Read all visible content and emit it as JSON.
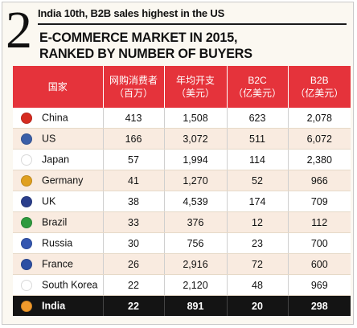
{
  "header": {
    "number": "2",
    "subtitle": "India 10th, B2B sales highest in the US",
    "title_line1": "E-COMMERCE MARKET IN 2015,",
    "title_line2": "RANKED BY NUMBER OF BUYERS"
  },
  "table": {
    "col_country": "国家",
    "col_buyers_1": "网购消费者",
    "col_buyers_2": "（百万）",
    "col_spend_1": "年均开支",
    "col_spend_2": "（美元）",
    "col_b2c_1": "B2C",
    "col_b2c_2": "（亿美元）",
    "col_b2b_1": "B2B",
    "col_b2b_2": "（亿美元）",
    "rows": [
      {
        "country": "China",
        "flag_icon": "china-flag-icon",
        "flag_color": "#d62b20",
        "buyers": "413",
        "spend": "1,508",
        "b2c": "623",
        "b2b": "2,078"
      },
      {
        "country": "US",
        "flag_icon": "us-flag-icon",
        "flag_color": "#3b5fa8",
        "buyers": "166",
        "spend": "3,072",
        "b2c": "511",
        "b2b": "6,072"
      },
      {
        "country": "Japan",
        "flag_icon": "japan-flag-icon",
        "flag_color": "#ffffff",
        "buyers": "57",
        "spend": "1,994",
        "b2c": "114",
        "b2b": "2,380"
      },
      {
        "country": "Germany",
        "flag_icon": "germany-flag-icon",
        "flag_color": "#e0a020",
        "buyers": "41",
        "spend": "1,270",
        "b2c": "52",
        "b2b": "966"
      },
      {
        "country": "UK",
        "flag_icon": "uk-flag-icon",
        "flag_color": "#2b3f8c",
        "buyers": "38",
        "spend": "4,539",
        "b2c": "174",
        "b2b": "709"
      },
      {
        "country": "Brazil",
        "flag_icon": "brazil-flag-icon",
        "flag_color": "#2e9a3e",
        "buyers": "33",
        "spend": "376",
        "b2c": "12",
        "b2b": "112"
      },
      {
        "country": "Russia",
        "flag_icon": "russia-flag-icon",
        "flag_color": "#3456b0",
        "buyers": "30",
        "spend": "756",
        "b2c": "23",
        "b2b": "700"
      },
      {
        "country": "France",
        "flag_icon": "france-flag-icon",
        "flag_color": "#2c4fa3",
        "buyers": "26",
        "spend": "2,916",
        "b2c": "72",
        "b2b": "600"
      },
      {
        "country": "South Korea",
        "flag_icon": "south-korea-flag-icon",
        "flag_color": "#ffffff",
        "buyers": "22",
        "spend": "2,120",
        "b2c": "48",
        "b2b": "969"
      },
      {
        "country": "India",
        "flag_icon": "india-flag-icon",
        "flag_color": "#f29b2c",
        "buyers": "22",
        "spend": "891",
        "b2c": "20",
        "b2b": "298",
        "highlight": true
      }
    ]
  }
}
